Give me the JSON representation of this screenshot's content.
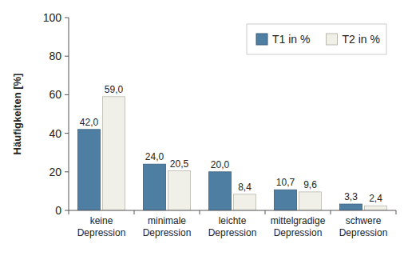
{
  "chart_data": {
    "type": "bar",
    "y_label": "Häufigkeiten [%]",
    "categories": [
      "keine Depression",
      "minimale Depression",
      "leichte Depression",
      "mittelgradige Depression",
      "schwere Depression"
    ],
    "series": [
      {
        "name": "T1 in %",
        "color": "#4f7ea3",
        "values": [
          42.0,
          24.0,
          20.0,
          10.7,
          3.3
        ],
        "value_labels": [
          "42,0",
          "24,0",
          "20,0",
          "10,7",
          "3,3"
        ]
      },
      {
        "name": "T2 in %",
        "color": "#f1f0e8",
        "values": [
          59.0,
          20.5,
          8.4,
          9.6,
          2.4
        ],
        "value_labels": [
          "59,0",
          "20,5",
          "8,4",
          "9,6",
          "2,4"
        ]
      }
    ],
    "ylim": [
      0,
      100
    ],
    "yticks": [
      0,
      20,
      40,
      60,
      80,
      100
    ],
    "grid": false,
    "legend": "upper right",
    "data_labels": true
  }
}
